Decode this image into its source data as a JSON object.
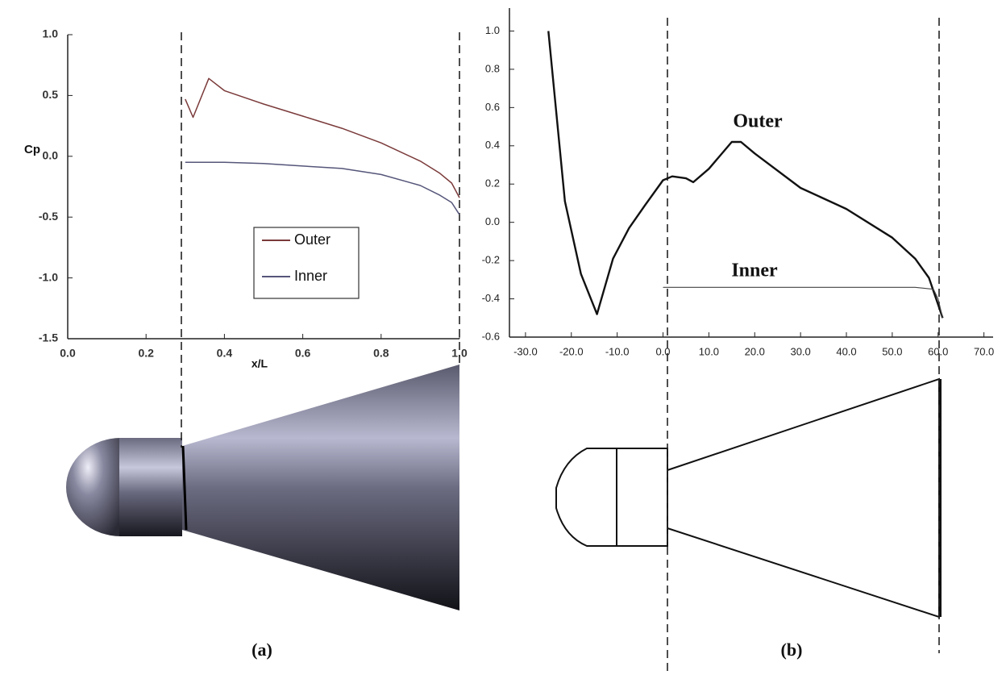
{
  "chart_data": [
    {
      "type": "line",
      "caption": "(a)",
      "xlabel": "x/L",
      "ylabel": "Cp",
      "xlim": [
        0,
        1
      ],
      "ylim": [
        -1.5,
        1
      ],
      "xticks": [
        {
          "value": 0,
          "label": "0.0"
        },
        0.2,
        0.4,
        0.6,
        0.8,
        {
          "value": 1,
          "label": "1.0"
        }
      ],
      "yticks": [
        -1.5,
        {
          "value": -1,
          "label": "-1.0"
        },
        -0.5,
        {
          "value": 0,
          "label": "0.0"
        },
        0.5,
        {
          "value": 1,
          "label": "1.0"
        }
      ],
      "legend": true,
      "series": [
        {
          "name": "Outer",
          "color": "#7b3a3a",
          "x": [
            0.3,
            0.32,
            0.36,
            0.4,
            0.5,
            0.6,
            0.7,
            0.8,
            0.9,
            0.95,
            0.98,
            1.0
          ],
          "values": [
            0.47,
            0.32,
            0.64,
            0.54,
            0.43,
            0.33,
            0.23,
            0.11,
            -0.04,
            -0.14,
            -0.22,
            -0.34
          ]
        },
        {
          "name": "Inner",
          "color": "#55557a",
          "x": [
            0.3,
            0.4,
            0.5,
            0.6,
            0.7,
            0.8,
            0.9,
            0.95,
            0.98,
            1.0
          ],
          "values": [
            -0.05,
            -0.05,
            -0.06,
            -0.08,
            -0.1,
            -0.15,
            -0.24,
            -0.32,
            -0.38,
            -0.48
          ]
        }
      ]
    },
    {
      "type": "line",
      "caption": "(b)",
      "xlim": [
        -33.5,
        72
      ],
      "ylim": [
        -0.6,
        1.12
      ],
      "xticks": [
        {
          "value": -30,
          "label": "-30.0"
        },
        {
          "value": -20,
          "label": "-20.0"
        },
        {
          "value": -10,
          "label": "-10.0"
        },
        {
          "value": 0,
          "label": "0.0"
        },
        {
          "value": 10,
          "label": "10.0"
        },
        {
          "value": 20,
          "label": "20.0"
        },
        {
          "value": 30,
          "label": "30.0"
        },
        {
          "value": 40,
          "label": "40.0"
        },
        {
          "value": 50,
          "label": "50.0"
        },
        {
          "value": 60,
          "label": "60.0"
        },
        {
          "value": 70,
          "label": "70.0"
        }
      ],
      "yticks": [
        -0.6,
        -0.4,
        -0.2,
        {
          "value": 0,
          "label": "0.0"
        },
        0.2,
        0.4,
        0.6,
        0.8,
        {
          "value": 1,
          "label": "1.0"
        }
      ],
      "legend": false,
      "series": [
        {
          "name": "Outer",
          "color": "#111111",
          "x": [
            -25,
            -21.4,
            -17.9,
            -14.4,
            -10.9,
            -7.4,
            -3.9,
            0,
            2,
            5,
            6.6,
            10,
            15,
            17,
            20,
            30,
            40,
            50,
            55,
            58,
            60,
            61
          ],
          "values": [
            1.0,
            0.11,
            -0.27,
            -0.48,
            -0.19,
            -0.03,
            0.09,
            0.22,
            0.24,
            0.23,
            0.21,
            0.28,
            0.42,
            0.42,
            0.36,
            0.18,
            0.07,
            -0.08,
            -0.19,
            -0.29,
            -0.43,
            -0.5
          ]
        },
        {
          "name": "Inner",
          "color": "#444444",
          "x": [
            0,
            20,
            40,
            55,
            59,
            60,
            61
          ],
          "values": [
            -0.34,
            -0.34,
            -0.34,
            -0.34,
            -0.35,
            -0.4,
            -0.5
          ]
        }
      ]
    }
  ]
}
